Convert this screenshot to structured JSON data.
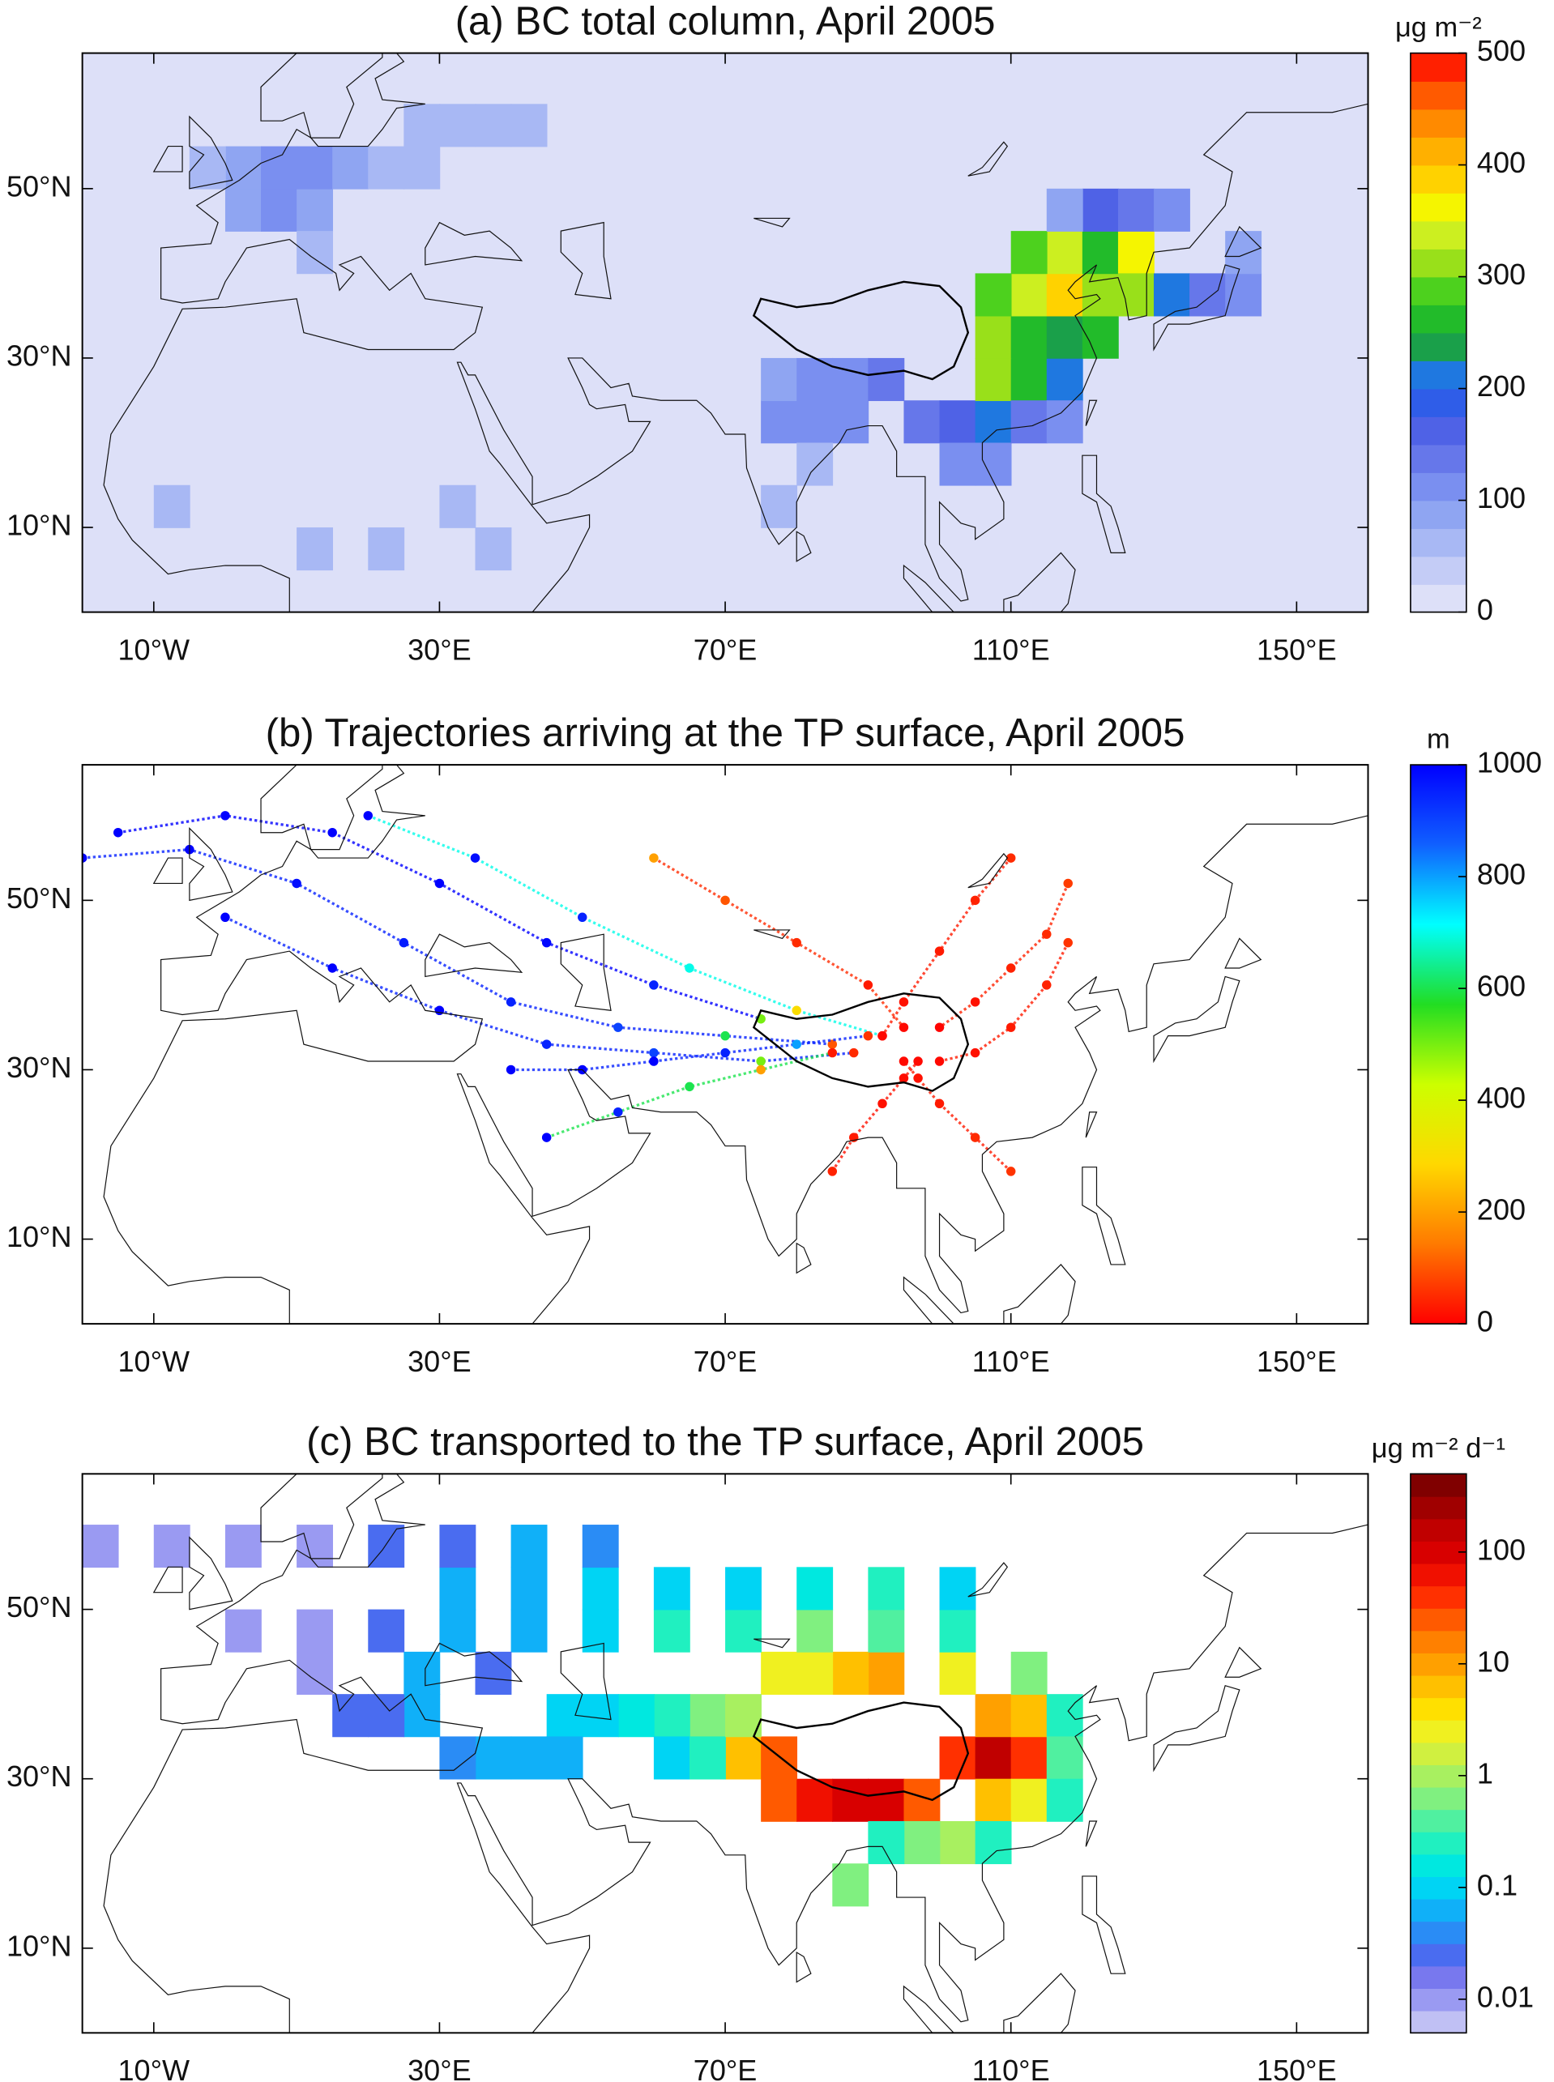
{
  "chart_data": [
    {
      "type": "gridmap",
      "title": "(a) BC total column, April 2005",
      "xlim": [
        -20,
        160
      ],
      "ylim": [
        0,
        66
      ],
      "xticks": [
        {
          "value": -10,
          "label": "10°W"
        },
        {
          "value": 30,
          "label": "30°E"
        },
        {
          "value": 70,
          "label": "70°E"
        },
        {
          "value": 110,
          "label": "110°E"
        },
        {
          "value": 150,
          "label": "150°E"
        }
      ],
      "yticks": [
        {
          "value": 10,
          "label": "10°N"
        },
        {
          "value": 30,
          "label": "30°N"
        },
        {
          "value": 50,
          "label": "50°N"
        }
      ],
      "cell_size": 5,
      "cells": {
        "lon": [
          0,
          5,
          10,
          0,
          5,
          10,
          15,
          20,
          -5,
          25,
          10,
          25,
          30,
          35,
          40,
          75,
          80,
          85,
          75,
          80,
          85,
          90,
          80,
          75,
          95,
          100,
          105,
          100,
          105,
          105,
          110,
          115,
          105,
          110,
          115,
          120,
          110,
          115,
          120,
          105,
          115,
          120,
          125,
          125,
          110,
          120,
          125,
          130,
          115,
          130,
          135,
          140,
          140,
          110,
          115,
          -10,
          10,
          20,
          30,
          35
        ],
        "lat": [
          45,
          45,
          45,
          50,
          50,
          50,
          50,
          50,
          50,
          50,
          40,
          55,
          55,
          55,
          55,
          20,
          20,
          20,
          25,
          25,
          25,
          25,
          15,
          10,
          20,
          20,
          20,
          15,
          15,
          25,
          25,
          25,
          30,
          30,
          30,
          30,
          35,
          35,
          35,
          35,
          40,
          40,
          40,
          35,
          40,
          45,
          45,
          45,
          45,
          35,
          35,
          35,
          40,
          20,
          20,
          10,
          5,
          5,
          10,
          5
        ],
        "values": [
          80,
          100,
          90,
          90,
          110,
          100,
          80,
          70,
          60,
          60,
          60,
          50,
          60,
          50,
          50,
          100,
          110,
          100,
          90,
          110,
          120,
          130,
          70,
          60,
          140,
          150,
          220,
          120,
          100,
          320,
          250,
          200,
          300,
          260,
          230,
          250,
          340,
          380,
          300,
          280,
          330,
          250,
          350,
          300,
          280,
          150,
          130,
          100,
          90,
          200,
          130,
          110,
          90,
          140,
          100,
          60,
          70,
          60,
          50,
          50
        ]
      },
      "colorbar": {
        "label": "μg m⁻²",
        "scale": "linear",
        "lim": [
          0,
          500
        ],
        "ticks": [
          0,
          100,
          200,
          300,
          400,
          500
        ],
        "colors": [
          "#dde0f8",
          "#c4ccf6",
          "#a8b8f4",
          "#8fa5f2",
          "#7a8ff0",
          "#6677ea",
          "#4f62e6",
          "#2f5de8",
          "#1f78e0",
          "#1aa04a",
          "#22bb2a",
          "#4dd11e",
          "#99e01a",
          "#ccef20",
          "#f5f500",
          "#ffd200",
          "#ffb000",
          "#ff8a00",
          "#ff5a00",
          "#ff2000"
        ]
      }
    },
    {
      "type": "trajectory",
      "title": "(b) Trajectories arriving at the TP surface, April 2005",
      "xlim": [
        -20,
        160
      ],
      "ylim": [
        0,
        66
      ],
      "xticks": [
        {
          "value": -10,
          "label": "10°W"
        },
        {
          "value": 30,
          "label": "30°E"
        },
        {
          "value": 70,
          "label": "70°E"
        },
        {
          "value": 110,
          "label": "110°E"
        },
        {
          "value": 150,
          "label": "150°E"
        }
      ],
      "yticks": [
        {
          "value": 10,
          "label": "10°N"
        },
        {
          "value": 30,
          "label": "30°N"
        },
        {
          "value": 50,
          "label": "50°N"
        }
      ],
      "trajectories": [
        {
          "lon": [
            -20,
            -5,
            10,
            25,
            40,
            55,
            70,
            85
          ],
          "lat": [
            55,
            56,
            52,
            45,
            38,
            35,
            34,
            33
          ],
          "height": [
            1000,
            1000,
            980,
            960,
            950,
            900,
            600,
            100
          ]
        },
        {
          "lon": [
            0,
            15,
            30,
            45,
            60,
            75,
            88
          ],
          "lat": [
            48,
            42,
            37,
            33,
            32,
            31,
            32
          ],
          "height": [
            1000,
            1000,
            1000,
            950,
            900,
            500,
            50
          ]
        },
        {
          "lon": [
            20,
            35,
            50,
            65,
            80,
            92
          ],
          "lat": [
            60,
            55,
            48,
            42,
            37,
            34
          ],
          "height": [
            1000,
            980,
            950,
            700,
            300,
            20
          ]
        },
        {
          "lon": [
            60,
            70,
            80,
            90,
            95
          ],
          "lat": [
            55,
            50,
            45,
            40,
            35
          ],
          "height": [
            200,
            100,
            50,
            30,
            10
          ]
        },
        {
          "lon": [
            110,
            105,
            100,
            95,
            92
          ],
          "lat": [
            55,
            50,
            44,
            38,
            34
          ],
          "height": [
            50,
            40,
            30,
            20,
            10
          ]
        },
        {
          "lon": [
            118,
            115,
            110,
            105,
            100
          ],
          "lat": [
            45,
            40,
            35,
            32,
            31
          ],
          "height": [
            60,
            40,
            30,
            20,
            10
          ]
        },
        {
          "lon": [
            85,
            88,
            92,
            95,
            97
          ],
          "lat": [
            18,
            22,
            26,
            29,
            31
          ],
          "height": [
            40,
            30,
            20,
            15,
            10
          ]
        },
        {
          "lon": [
            110,
            105,
            100,
            97,
            95
          ],
          "lat": [
            18,
            22,
            26,
            29,
            31
          ],
          "height": [
            60,
            50,
            30,
            20,
            10
          ]
        },
        {
          "lon": [
            45,
            55,
            65,
            75,
            85
          ],
          "lat": [
            22,
            25,
            28,
            30,
            32
          ],
          "height": [
            1000,
            950,
            600,
            200,
            30
          ]
        },
        {
          "lon": [
            40,
            50,
            60,
            70,
            80,
            90
          ],
          "lat": [
            30,
            30,
            31,
            32,
            33,
            34
          ],
          "height": [
            1000,
            1000,
            1000,
            950,
            800,
            60
          ]
        },
        {
          "lon": [
            -15,
            0,
            15,
            30,
            45,
            60,
            75
          ],
          "lat": [
            58,
            60,
            58,
            52,
            45,
            40,
            36
          ],
          "height": [
            1000,
            1000,
            1000,
            1000,
            990,
            950,
            500
          ]
        },
        {
          "lon": [
            118,
            115,
            110,
            105,
            100
          ],
          "lat": [
            52,
            46,
            42,
            38,
            35
          ],
          "height": [
            70,
            50,
            40,
            20,
            5
          ]
        }
      ],
      "colorbar": {
        "label": "m",
        "scale": "continuous",
        "lim": [
          0,
          1000
        ],
        "ticks": [
          0,
          200,
          400,
          600,
          800,
          1000
        ],
        "colors": [
          "#ff0000",
          "#ff7a00",
          "#ffd800",
          "#ccff00",
          "#22dd22",
          "#00ffff",
          "#1060ff",
          "#0000ff"
        ]
      }
    },
    {
      "type": "gridmap",
      "title": "(c) BC transported to the TP surface, April 2005",
      "xlim": [
        -20,
        160
      ],
      "ylim": [
        0,
        66
      ],
      "xticks": [
        {
          "value": -10,
          "label": "10°W"
        },
        {
          "value": 30,
          "label": "30°E"
        },
        {
          "value": 70,
          "label": "70°E"
        },
        {
          "value": 110,
          "label": "110°E"
        },
        {
          "value": 150,
          "label": "150°E"
        }
      ],
      "yticks": [
        {
          "value": 10,
          "label": "10°N"
        },
        {
          "value": 30,
          "label": "30°N"
        },
        {
          "value": 50,
          "label": "50°N"
        }
      ],
      "cell_size": 5,
      "cells": {
        "lon": [
          75,
          80,
          85,
          90,
          95,
          70,
          75,
          100,
          105,
          110,
          105,
          110,
          100,
          90,
          85,
          80,
          75,
          105,
          110,
          100,
          95,
          90,
          85,
          105,
          65,
          60,
          55,
          50,
          45,
          40,
          35,
          30,
          25,
          20,
          15,
          45,
          60,
          65,
          70,
          80,
          90,
          100,
          70,
          60,
          50,
          40,
          30,
          20,
          10,
          30,
          40,
          50,
          60,
          70,
          80,
          90,
          100,
          40,
          50,
          30,
          20,
          10,
          -20,
          -10,
          0,
          110,
          115,
          115,
          115,
          0,
          10,
          25,
          35
        ],
        "lat": [
          25,
          25,
          25,
          25,
          25,
          30,
          30,
          30,
          30,
          30,
          35,
          35,
          40,
          40,
          40,
          40,
          40,
          25,
          25,
          20,
          20,
          20,
          15,
          20,
          35,
          35,
          35,
          35,
          35,
          30,
          30,
          30,
          35,
          35,
          35,
          30,
          30,
          30,
          35,
          45,
          45,
          45,
          45,
          45,
          45,
          45,
          45,
          45,
          45,
          50,
          50,
          50,
          50,
          50,
          50,
          50,
          50,
          55,
          55,
          55,
          55,
          55,
          55,
          55,
          55,
          40,
          35,
          30,
          25,
          45,
          40,
          40,
          40
        ],
        "values": [
          20,
          60,
          100,
          80,
          30,
          5,
          30,
          40,
          150,
          40,
          10,
          5,
          3,
          8,
          5,
          2,
          3,
          5,
          2,
          1,
          0.5,
          0.3,
          0.5,
          0.2,
          0.5,
          0.3,
          0.15,
          0.1,
          0.08,
          0.05,
          0.05,
          0.04,
          0.05,
          0.03,
          0.02,
          0.05,
          0.1,
          0.3,
          1,
          0.5,
          0.4,
          0.3,
          0.3,
          0.2,
          0.1,
          0.05,
          0.06,
          0.02,
          0.01,
          0.06,
          0.05,
          0.1,
          0.1,
          0.08,
          0.15,
          0.2,
          0.1,
          0.05,
          0.04,
          0.03,
          0.02,
          0.01,
          0.01,
          0.01,
          0.01,
          0.5,
          0.3,
          0.4,
          0.2,
          0.01,
          0.01,
          0.05,
          0.03
        ]
      },
      "colorbar": {
        "label": "μg m⁻² d⁻¹",
        "scale": "log",
        "lim": [
          0.005,
          500
        ],
        "ticks": [
          0.01,
          0.1,
          1,
          10,
          100
        ],
        "colors": [
          "#c0c0f4",
          "#9a9af2",
          "#7878ee",
          "#4a6cf0",
          "#2a8cf5",
          "#10b0f8",
          "#00d4f4",
          "#00e8e0",
          "#20f0c0",
          "#50f0a0",
          "#80f080",
          "#a8f060",
          "#d0f040",
          "#f0f020",
          "#ffe000",
          "#ffc000",
          "#ffa000",
          "#ff8000",
          "#ff5a00",
          "#ff3000",
          "#f01000",
          "#d80000",
          "#c00000",
          "#a00000",
          "#800000"
        ]
      }
    }
  ]
}
